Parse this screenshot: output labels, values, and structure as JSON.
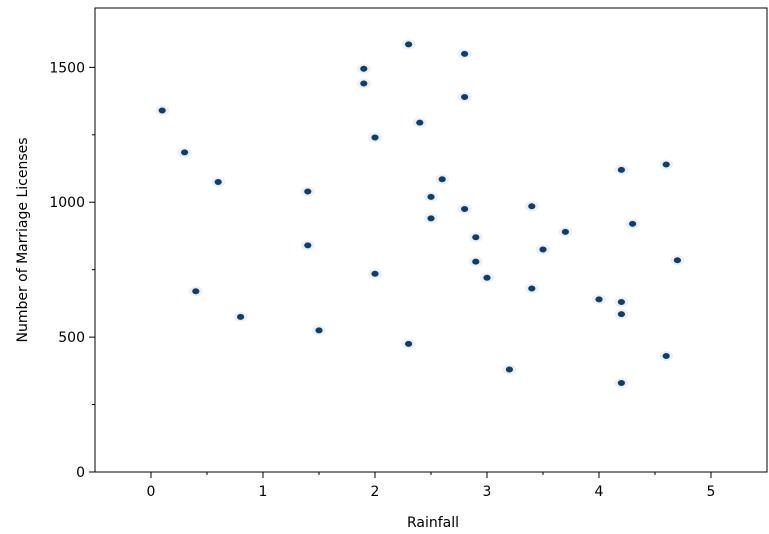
{
  "chart_data": {
    "type": "scatter",
    "title": "",
    "xlabel": "Rainfall",
    "ylabel": "Number of Marriage Licenses",
    "xlim": [
      -0.5,
      5.5
    ],
    "ylim": [
      0,
      1720
    ],
    "x_ticks": [
      "0",
      "1",
      "2",
      "3",
      "4",
      "5"
    ],
    "y_ticks": [
      "0",
      "500",
      "1000",
      "1500"
    ],
    "grid": false,
    "point_color": "#0c3f6e",
    "points": [
      {
        "x": 0.1,
        "y": 1340
      },
      {
        "x": 0.3,
        "y": 1185
      },
      {
        "x": 0.4,
        "y": 670
      },
      {
        "x": 0.6,
        "y": 1075
      },
      {
        "x": 0.8,
        "y": 575
      },
      {
        "x": 1.4,
        "y": 1040
      },
      {
        "x": 1.4,
        "y": 840
      },
      {
        "x": 1.5,
        "y": 525
      },
      {
        "x": 1.9,
        "y": 1495
      },
      {
        "x": 1.9,
        "y": 1440
      },
      {
        "x": 2.0,
        "y": 1240
      },
      {
        "x": 2.0,
        "y": 735
      },
      {
        "x": 2.3,
        "y": 1585
      },
      {
        "x": 2.3,
        "y": 475
      },
      {
        "x": 2.4,
        "y": 1295
      },
      {
        "x": 2.5,
        "y": 1020
      },
      {
        "x": 2.5,
        "y": 940
      },
      {
        "x": 2.6,
        "y": 1085
      },
      {
        "x": 2.8,
        "y": 1550
      },
      {
        "x": 2.8,
        "y": 1390
      },
      {
        "x": 2.8,
        "y": 975
      },
      {
        "x": 2.9,
        "y": 870
      },
      {
        "x": 2.9,
        "y": 780
      },
      {
        "x": 3.0,
        "y": 720
      },
      {
        "x": 3.2,
        "y": 380
      },
      {
        "x": 3.4,
        "y": 985
      },
      {
        "x": 3.4,
        "y": 680
      },
      {
        "x": 3.5,
        "y": 825
      },
      {
        "x": 3.7,
        "y": 890
      },
      {
        "x": 4.0,
        "y": 640
      },
      {
        "x": 4.2,
        "y": 1120
      },
      {
        "x": 4.2,
        "y": 630
      },
      {
        "x": 4.2,
        "y": 585
      },
      {
        "x": 4.2,
        "y": 330
      },
      {
        "x": 4.3,
        "y": 920
      },
      {
        "x": 4.6,
        "y": 1140
      },
      {
        "x": 4.6,
        "y": 430
      },
      {
        "x": 4.7,
        "y": 785
      }
    ]
  }
}
